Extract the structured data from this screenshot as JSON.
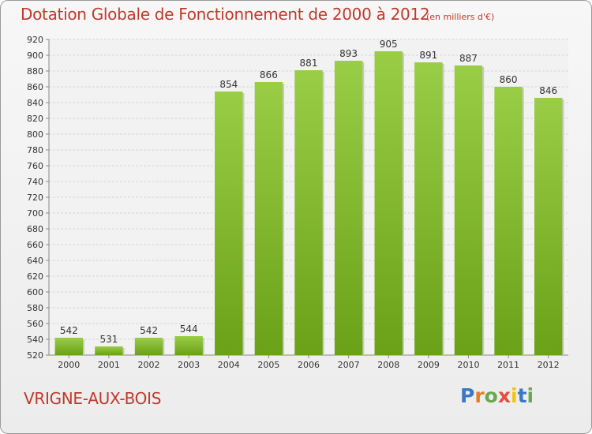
{
  "header": {
    "title": "Dotation Globale de Fonctionnement de 2000 à 2012",
    "unit": "(en milliers d'€)"
  },
  "footer": {
    "commune": "VRIGNE-AUX-BOIS",
    "logo_text": "Proxiti",
    "logo_colors": [
      "#3a78c2",
      "#e67e22",
      "#6aa84f",
      "#e74c3c",
      "#f1c40f",
      "#3a78c2",
      "#6aa84f"
    ]
  },
  "colors": {
    "title": "#c0392b",
    "bar_light": "#9acd46",
    "bar_dark": "#6aa117",
    "grid": "#d6d6d6"
  },
  "chart_data": {
    "type": "bar",
    "title": "Dotation Globale de Fonctionnement de 2000 à 2012",
    "subtitle": "(en milliers d'€)",
    "xlabel": "",
    "ylabel": "",
    "categories": [
      "2000",
      "2001",
      "2002",
      "2003",
      "2004",
      "2005",
      "2006",
      "2007",
      "2008",
      "2009",
      "2010",
      "2011",
      "2012"
    ],
    "values": [
      542,
      531,
      542,
      544,
      854,
      866,
      881,
      893,
      905,
      891,
      887,
      860,
      846
    ],
    "ylim": [
      520,
      920
    ],
    "ytick_step": 20,
    "grid": true,
    "legend": "none"
  }
}
